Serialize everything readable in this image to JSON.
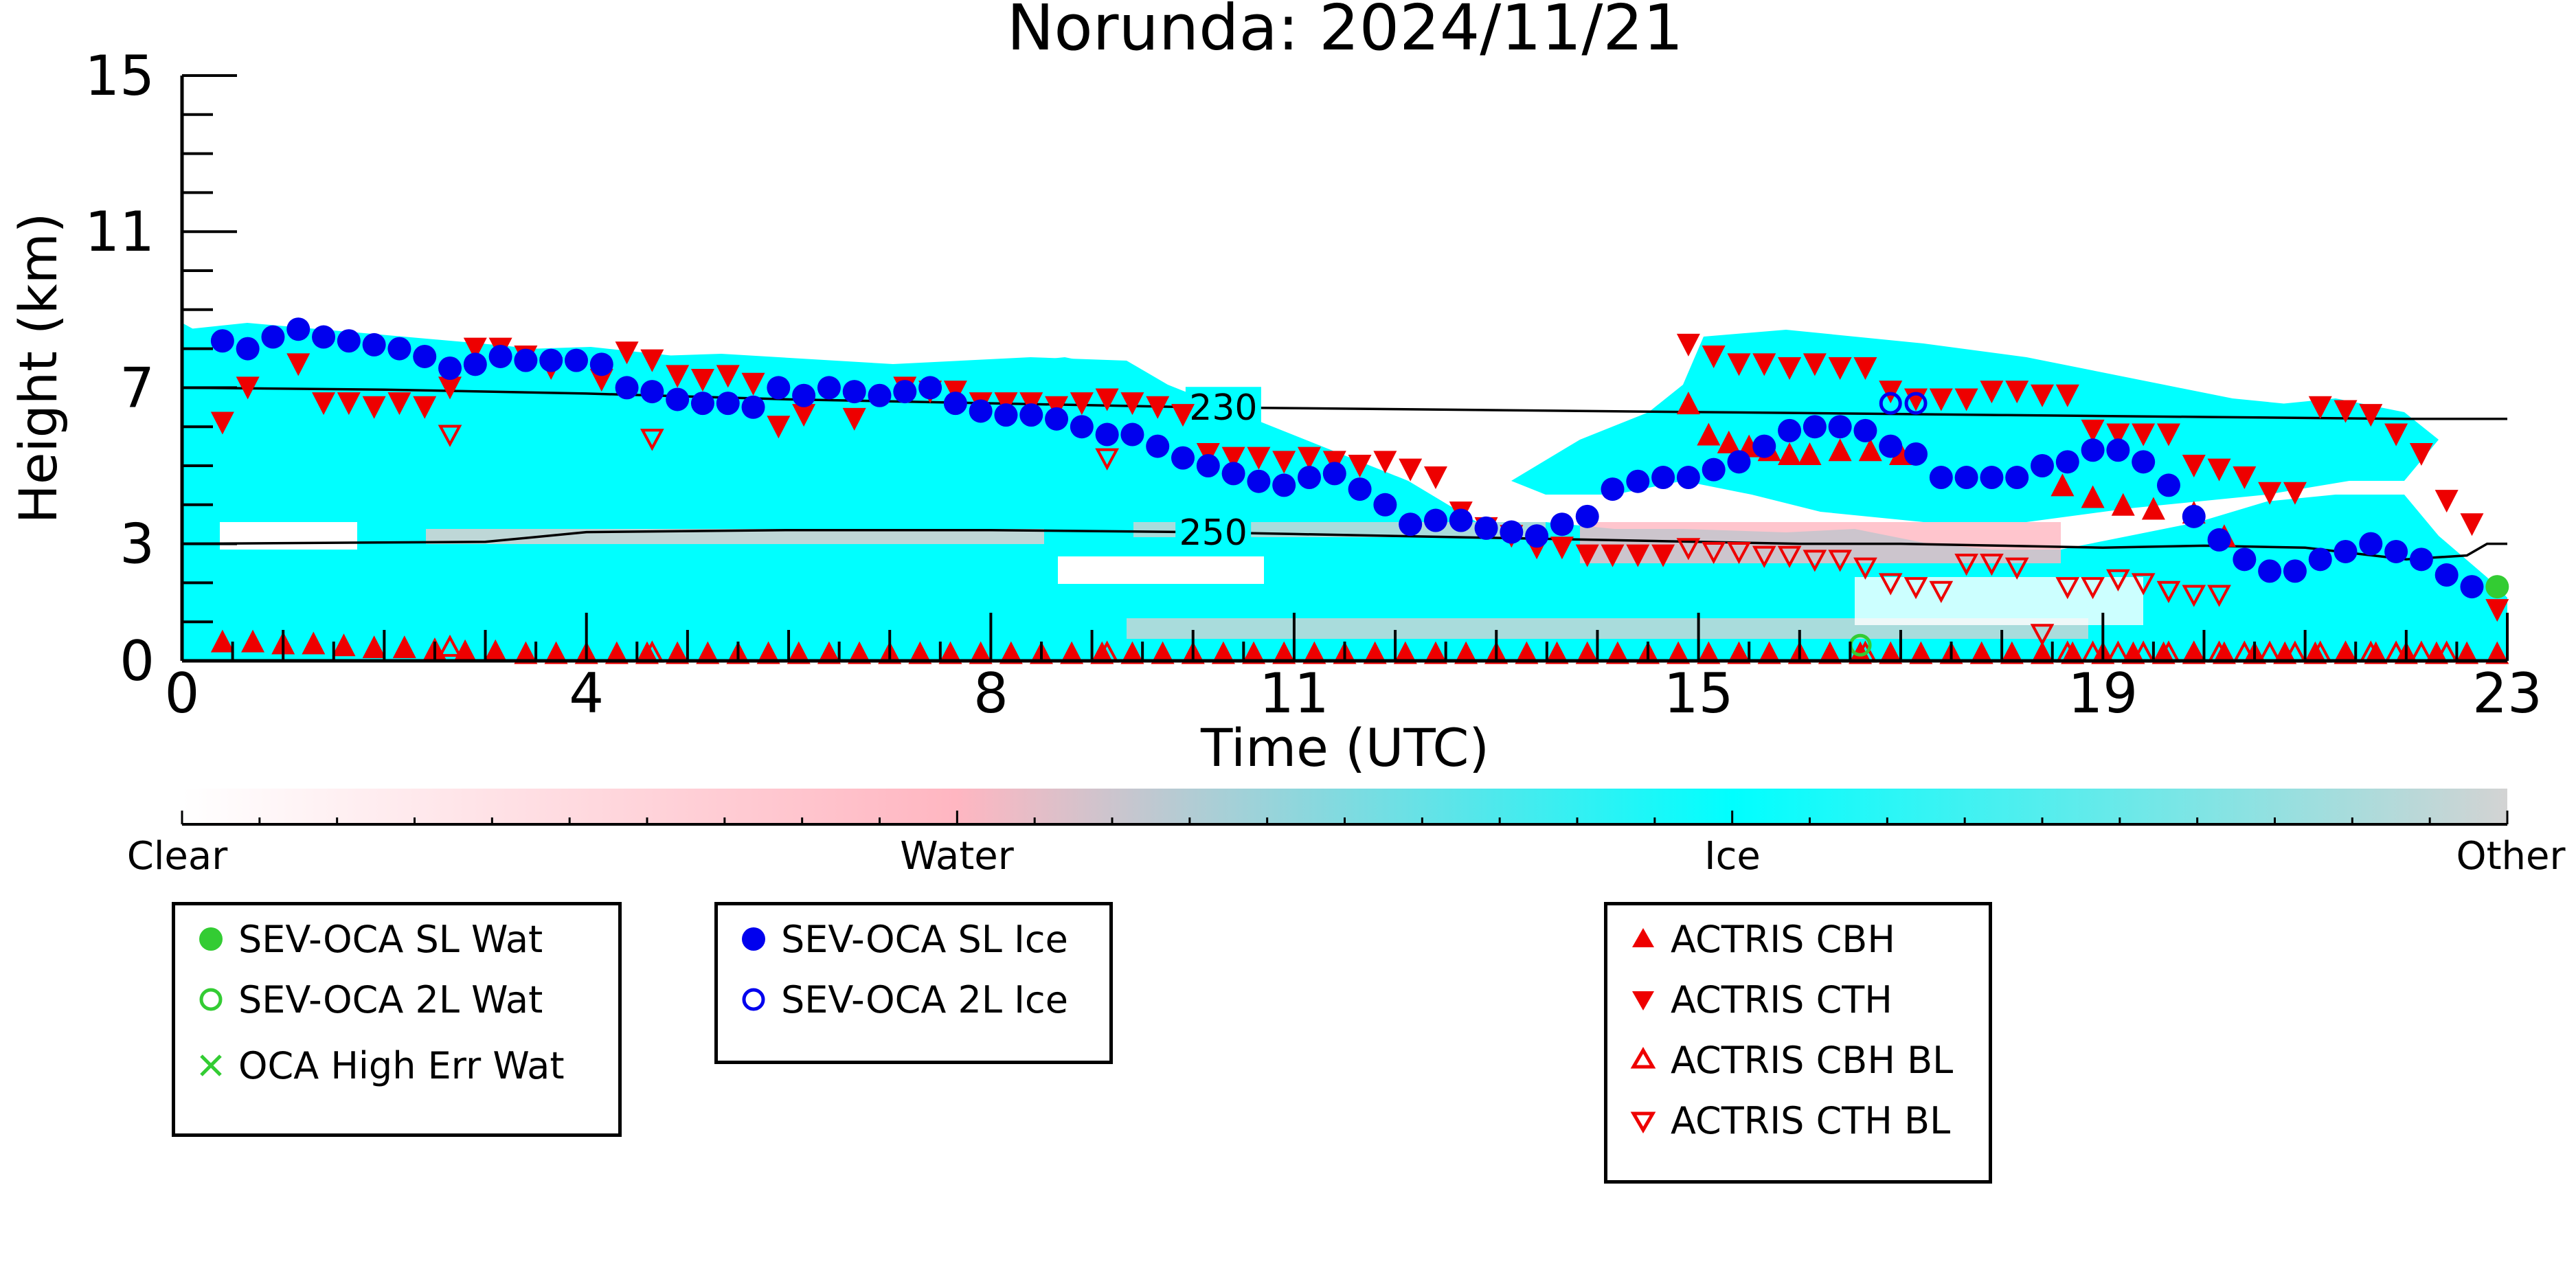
{
  "chart_data": {
    "type": "scatter",
    "title": "Norunda: 2024/11/21",
    "xlabel": "Time (UTC)",
    "ylabel": "Height (km)",
    "xlim": [
      0,
      23
    ],
    "ylim": [
      0,
      15
    ],
    "x_ticks": [
      0,
      4,
      8,
      11,
      15,
      19,
      23
    ],
    "y_ticks": [
      0,
      3,
      7,
      11,
      15
    ],
    "contours": [
      {
        "label": "230",
        "label_x": 10.3,
        "x": [
          0,
          2,
          4,
          6,
          8,
          10,
          12,
          14,
          16,
          18,
          20,
          22,
          23
        ],
        "y": [
          7.0,
          6.95,
          6.85,
          6.7,
          6.6,
          6.5,
          6.45,
          6.4,
          6.35,
          6.3,
          6.25,
          6.2,
          6.2
        ]
      },
      {
        "label": "250",
        "label_x": 10.2,
        "x": [
          0,
          3,
          4,
          6,
          8,
          10,
          11,
          12,
          14,
          15,
          16,
          17,
          18,
          19,
          20,
          21,
          22,
          22.6,
          22.8,
          23
        ],
        "y": [
          3.0,
          3.05,
          3.3,
          3.35,
          3.35,
          3.3,
          3.25,
          3.2,
          3.1,
          3.05,
          3.0,
          3.0,
          2.95,
          2.9,
          2.95,
          2.9,
          2.6,
          2.7,
          3.0,
          3.0
        ]
      }
    ],
    "series": [
      {
        "name": "SEV-OCA SL Wat",
        "color": "#33cc33",
        "marker": "filled-circle",
        "x": [
          22.9
        ],
        "y": [
          1.9
        ]
      },
      {
        "name": "SEV-OCA 2L Wat",
        "color": "#33cc33",
        "marker": "open-circle",
        "x": [
          16.6
        ],
        "y": [
          0.4
        ]
      },
      {
        "name": "OCA High Err Wat",
        "color": "#33cc33",
        "marker": "cross",
        "x": [],
        "y": []
      },
      {
        "name": "SEV-OCA SL Ice",
        "color": "#0000ee",
        "marker": "filled-circle",
        "x": [
          0.4,
          0.65,
          0.9,
          1.15,
          1.4,
          1.65,
          1.9,
          2.15,
          2.4,
          2.65,
          2.9,
          3.15,
          3.4,
          3.65,
          3.9,
          4.15,
          4.4,
          4.65,
          4.9,
          5.15,
          5.4,
          5.65,
          5.9,
          6.15,
          6.4,
          6.65,
          6.9,
          7.15,
          7.4,
          7.65,
          7.9,
          8.15,
          8.4,
          8.65,
          8.9,
          9.15,
          9.4,
          9.65,
          9.9,
          10.15,
          10.4,
          10.65,
          10.9,
          11.15,
          11.4,
          11.65,
          11.9,
          12.15,
          12.4,
          12.65,
          12.9,
          13.15,
          13.4,
          13.65,
          13.9,
          14.15,
          14.4,
          14.65,
          14.9,
          15.15,
          15.4,
          15.65,
          15.9,
          16.15,
          16.4,
          16.65,
          16.9,
          17.15,
          17.4,
          17.65,
          17.9,
          18.15,
          18.4,
          18.65,
          18.9,
          19.15,
          19.4,
          19.65,
          19.9,
          20.15,
          20.4,
          20.65,
          20.9,
          21.15,
          21.4,
          21.65,
          21.9,
          22.15,
          22.4,
          22.65
        ],
        "y": [
          8.2,
          8.0,
          8.3,
          8.5,
          8.3,
          8.2,
          8.1,
          8.0,
          7.8,
          7.5,
          7.6,
          7.8,
          7.7,
          7.7,
          7.7,
          7.6,
          7.0,
          6.9,
          6.7,
          6.6,
          6.6,
          6.5,
          7.0,
          6.8,
          7.0,
          6.9,
          6.8,
          6.9,
          7.0,
          6.6,
          6.4,
          6.3,
          6.3,
          6.2,
          6.0,
          5.8,
          5.8,
          5.5,
          5.2,
          5.0,
          4.8,
          4.6,
          4.5,
          4.7,
          4.8,
          4.4,
          4.0,
          3.5,
          3.6,
          3.6,
          3.4,
          3.3,
          3.2,
          3.5,
          3.7,
          4.4,
          4.6,
          4.7,
          4.7,
          4.9,
          5.1,
          5.5,
          5.9,
          6.0,
          6.0,
          5.9,
          5.5,
          5.3,
          4.7,
          4.7,
          4.7,
          4.7,
          5.0,
          5.1,
          5.4,
          5.4,
          5.1,
          4.5,
          3.7,
          3.1,
          2.6,
          2.3,
          2.3,
          2.6,
          2.8,
          3.0,
          2.8,
          2.6,
          2.2,
          1.9
        ],
        "x_extra": [],
        "y_extra": []
      },
      {
        "name": "SEV-OCA 2L Ice",
        "color": "#0000ee",
        "marker": "open-circle",
        "x": [
          16.9,
          17.15
        ],
        "y": [
          6.6,
          6.6
        ]
      },
      {
        "name": "ACTRIS CBH",
        "color": "#ee0000",
        "marker": "filled-triangle-up",
        "x": [
          0.4,
          0.7,
          1.0,
          1.3,
          1.6,
          1.9,
          2.2,
          2.5,
          2.8,
          3.1,
          3.4,
          3.7,
          4.0,
          4.3,
          4.6,
          4.9,
          5.2,
          5.5,
          5.8,
          6.1,
          6.4,
          6.7,
          7.0,
          7.3,
          7.6,
          7.9,
          8.2,
          8.5,
          8.8,
          9.1,
          9.4,
          9.7,
          10.0,
          10.3,
          10.6,
          10.9,
          11.2,
          11.5,
          11.8,
          12.1,
          12.4,
          12.7,
          13.0,
          13.3,
          13.6,
          13.9,
          14.2,
          14.5,
          14.8,
          15.1,
          15.4,
          15.7,
          16.0,
          16.3,
          16.6,
          16.9,
          17.2,
          17.5,
          17.8,
          18.1,
          18.4,
          18.7,
          19.0,
          19.3,
          19.6,
          19.9,
          20.2,
          20.5,
          20.8,
          21.1,
          21.4,
          21.7,
          22.0,
          22.3,
          22.6,
          22.9,
          14.9,
          15.1,
          15.3,
          15.5,
          15.7,
          15.9,
          16.1,
          16.4,
          16.7,
          17.0,
          18.6,
          18.9,
          19.2,
          19.5,
          19.9,
          20.2
        ],
        "y": [
          0.5,
          0.5,
          0.45,
          0.45,
          0.4,
          0.35,
          0.35,
          0.3,
          0.25,
          0.25,
          0.2,
          0.2,
          0.2,
          0.2,
          0.2,
          0.2,
          0.2,
          0.2,
          0.2,
          0.2,
          0.2,
          0.2,
          0.2,
          0.2,
          0.2,
          0.2,
          0.2,
          0.2,
          0.2,
          0.2,
          0.2,
          0.2,
          0.2,
          0.2,
          0.2,
          0.2,
          0.2,
          0.2,
          0.2,
          0.2,
          0.2,
          0.2,
          0.2,
          0.2,
          0.2,
          0.2,
          0.2,
          0.2,
          0.2,
          0.2,
          0.2,
          0.2,
          0.2,
          0.2,
          0.2,
          0.2,
          0.2,
          0.2,
          0.2,
          0.2,
          0.2,
          0.2,
          0.2,
          0.2,
          0.2,
          0.2,
          0.2,
          0.2,
          0.2,
          0.2,
          0.2,
          0.2,
          0.2,
          0.2,
          0.2,
          0.2,
          6.6,
          5.8,
          5.6,
          5.5,
          5.4,
          5.3,
          5.3,
          5.4,
          5.4,
          5.3,
          4.5,
          4.2,
          4.0,
          3.9,
          3.8,
          3.2
        ]
      },
      {
        "name": "ACTRIS CTH",
        "color": "#ee0000",
        "marker": "filled-triangle-down",
        "x": [
          0.4,
          0.65,
          1.15,
          1.4,
          1.65,
          1.9,
          2.15,
          2.4,
          2.65,
          2.9,
          3.15,
          3.4,
          3.65,
          4.15,
          4.4,
          4.65,
          4.9,
          5.15,
          5.4,
          5.65,
          5.9,
          6.15,
          6.65,
          7.15,
          7.4,
          7.65,
          7.9,
          8.15,
          8.4,
          8.65,
          8.9,
          9.15,
          9.4,
          9.65,
          9.9,
          10.15,
          10.4,
          10.65,
          10.9,
          11.15,
          11.4,
          11.65,
          11.9,
          12.15,
          12.4,
          12.65,
          12.9,
          13.15,
          13.4,
          13.65,
          13.9,
          14.15,
          14.4,
          14.65,
          14.9,
          15.15,
          15.4,
          15.65,
          15.9,
          16.15,
          16.4,
          16.65,
          16.9,
          17.15,
          17.4,
          17.65,
          17.9,
          18.15,
          18.4,
          18.65,
          18.9,
          19.15,
          19.4,
          19.65,
          19.9,
          20.15,
          20.4,
          20.65,
          20.9,
          21.15,
          21.4,
          21.65,
          21.9,
          22.15,
          22.4,
          22.65,
          22.9
        ],
        "y": [
          6.1,
          7.0,
          7.6,
          6.6,
          6.6,
          6.5,
          6.6,
          6.5,
          7.0,
          8.0,
          8.0,
          7.8,
          7.5,
          7.2,
          7.9,
          7.7,
          7.3,
          7.2,
          7.3,
          7.1,
          6.0,
          6.3,
          6.2,
          7.0,
          6.9,
          6.9,
          6.6,
          6.6,
          6.6,
          6.5,
          6.6,
          6.7,
          6.6,
          6.5,
          6.3,
          5.3,
          5.2,
          5.2,
          5.1,
          5.2,
          5.1,
          5.0,
          5.1,
          4.9,
          4.7,
          3.8,
          3.4,
          3.2,
          2.9,
          2.9,
          2.7,
          2.7,
          2.7,
          2.7,
          8.1,
          7.8,
          7.6,
          7.6,
          7.5,
          7.6,
          7.5,
          7.5,
          6.9,
          6.7,
          6.7,
          6.7,
          6.9,
          6.9,
          6.8,
          6.8,
          5.9,
          5.8,
          5.8,
          5.8,
          5.0,
          4.9,
          4.7,
          4.3,
          4.3,
          6.5,
          6.4,
          6.3,
          5.8,
          5.3,
          4.1,
          3.5,
          1.3
        ]
      },
      {
        "name": "ACTRIS CBH BL",
        "color": "#ee0000",
        "marker": "open-triangle-up",
        "x": [
          2.65,
          4.65,
          9.15,
          16.65,
          18.65,
          18.9,
          19.15,
          19.4,
          19.65,
          19.9,
          20.15,
          20.4,
          20.65,
          20.9,
          21.15,
          21.4,
          21.65,
          21.9,
          22.15,
          22.4
        ],
        "y": [
          0.35,
          0.2,
          0.2,
          0.2,
          0.2,
          0.2,
          0.2,
          0.2,
          0.2,
          0.2,
          0.2,
          0.2,
          0.2,
          0.2,
          0.2,
          0.2,
          0.2,
          0.2,
          0.2,
          0.2
        ]
      },
      {
        "name": "ACTRIS CTH BL",
        "color": "#ee0000",
        "marker": "open-triangle-down",
        "x": [
          2.65,
          4.65,
          9.15,
          14.9,
          15.15,
          15.4,
          15.65,
          15.9,
          16.15,
          16.4,
          16.65,
          16.9,
          17.15,
          17.4,
          17.65,
          17.9,
          18.15,
          18.4,
          18.65,
          18.9,
          19.15,
          19.4,
          19.65,
          19.9,
          20.15
        ],
        "y": [
          5.8,
          5.7,
          5.2,
          2.9,
          2.8,
          2.8,
          2.7,
          2.7,
          2.6,
          2.6,
          2.4,
          2.0,
          1.9,
          1.8,
          2.5,
          2.5,
          2.4,
          0.7,
          1.9,
          1.9,
          2.1,
          2.0,
          1.8,
          1.7,
          1.7
        ]
      }
    ],
    "colorbar": {
      "labels": [
        "Clear",
        "Water",
        "Ice",
        "Other"
      ],
      "stops": [
        {
          "pos": 0,
          "color": "#ffffff"
        },
        {
          "pos": 0.333,
          "color": "#ffb6c1"
        },
        {
          "pos": 0.667,
          "color": "#00ffff"
        },
        {
          "pos": 1,
          "color": "#d3d3d3"
        }
      ]
    },
    "legend": [
      [
        "SEV-OCA SL Wat",
        "SEV-OCA 2L Wat",
        "OCA High Err Wat"
      ],
      [
        "SEV-OCA SL Ice",
        "SEV-OCA 2L Ice"
      ],
      [
        "ACTRIS CBH",
        "ACTRIS CTH",
        "ACTRIS CBH BL",
        "ACTRIS CTH BL"
      ]
    ],
    "colors": {
      "ice": "#00ffff",
      "water": "#ffb6c1",
      "other": "#d3d3d3",
      "sl_ice": "#0000ee",
      "wat": "#33cc33",
      "actris": "#ee0000"
    }
  }
}
